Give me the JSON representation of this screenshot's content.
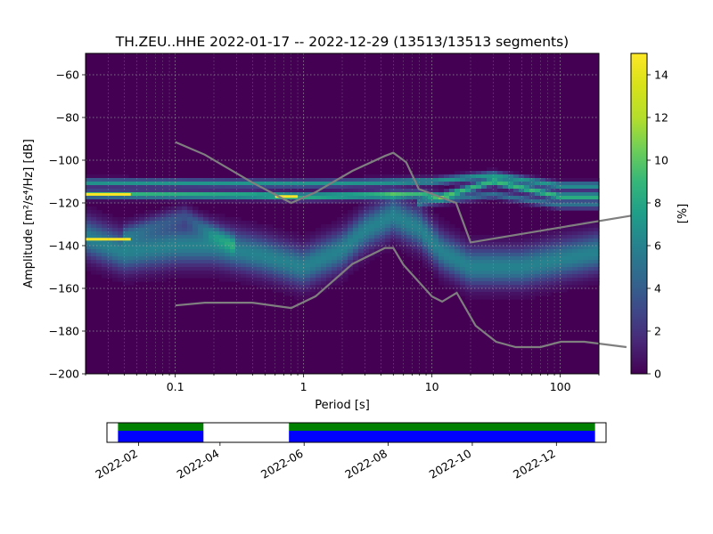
{
  "chart_data": {
    "type": "heatmap",
    "title": "TH.ZEU..HHE   2022-01-17 -- 2022-12-29  (13513/13513 segments)",
    "xlabel": "Period [s]",
    "ylabel": "Amplitude [m²/s⁴/Hz] [dB]",
    "xscale": "log",
    "xlim": [
      0.02,
      200
    ],
    "ylim": [
      -200,
      -50
    ],
    "grid": true,
    "x_ticks": [
      {
        "value": 0.1,
        "label": "0.1"
      },
      {
        "value": 1,
        "label": "1"
      },
      {
        "value": 10,
        "label": "10"
      },
      {
        "value": 100,
        "label": "100"
      }
    ],
    "y_ticks": [
      {
        "value": -60,
        "label": "−60"
      },
      {
        "value": -80,
        "label": "−80"
      },
      {
        "value": -100,
        "label": "−100"
      },
      {
        "value": -120,
        "label": "−120"
      },
      {
        "value": -140,
        "label": "−140"
      },
      {
        "value": -160,
        "label": "−160"
      },
      {
        "value": -180,
        "label": "−180"
      },
      {
        "value": -200,
        "label": "−200"
      }
    ],
    "colorbar": {
      "label": "[%]",
      "range": [
        0,
        15
      ],
      "colormap": "viridis",
      "ticks": [
        {
          "value": 0,
          "label": "0"
        },
        {
          "value": 2,
          "label": "2"
        },
        {
          "value": 4,
          "label": "4"
        },
        {
          "value": 6,
          "label": "6"
        },
        {
          "value": 8,
          "label": "8"
        },
        {
          "value": 10,
          "label": "10"
        },
        {
          "value": 12,
          "label": "12"
        },
        {
          "value": 14,
          "label": "14"
        }
      ]
    },
    "psd_bands": [
      {
        "name": "primary",
        "points": [
          [
            0.02,
            -136
          ],
          [
            0.04,
            -143
          ],
          [
            0.1,
            -140
          ],
          [
            0.2,
            -140
          ],
          [
            0.5,
            -145
          ],
          [
            1,
            -150
          ],
          [
            2,
            -142
          ],
          [
            3,
            -133
          ],
          [
            5,
            -126
          ],
          [
            8,
            -132
          ],
          [
            12,
            -143
          ],
          [
            20,
            -150
          ],
          [
            50,
            -150
          ],
          [
            200,
            -143
          ]
        ],
        "spread": 6,
        "peak": 6
      },
      {
        "name": "upper-spur",
        "points": [
          [
            0.04,
            -135
          ],
          [
            0.07,
            -130
          ],
          [
            0.12,
            -126
          ],
          [
            0.2,
            -134
          ],
          [
            0.3,
            -140
          ]
        ],
        "spread": 3,
        "peak": 3
      },
      {
        "name": "tonal-110",
        "points": [
          [
            0.02,
            -110.5
          ],
          [
            1,
            -111
          ],
          [
            4,
            -110.5
          ],
          [
            8,
            -110
          ],
          [
            10,
            -110
          ],
          [
            30,
            -107
          ],
          [
            100,
            -112
          ],
          [
            200,
            -112
          ]
        ],
        "spread": 1.2,
        "peak": 7
      },
      {
        "name": "tonal-116",
        "points": [
          [
            0.02,
            -116
          ],
          [
            0.4,
            -116.5
          ],
          [
            1,
            -117
          ],
          [
            8,
            -116
          ],
          [
            12,
            -117
          ],
          [
            30,
            -110
          ],
          [
            100,
            -117
          ],
          [
            200,
            -117
          ]
        ],
        "spread": 1.2,
        "peak": 9
      },
      {
        "name": "tonal-120",
        "points": [
          [
            8,
            -120
          ],
          [
            30,
            -116
          ],
          [
            100,
            -121
          ],
          [
            200,
            -121
          ]
        ],
        "spread": 1.2,
        "peak": 5
      }
    ],
    "hot_segments": [
      {
        "x": [
          0.02,
          0.045
        ],
        "y": -137,
        "color": "#fde725"
      },
      {
        "x": [
          0.02,
          0.045
        ],
        "y": -116,
        "color": "#fde725"
      },
      {
        "x": [
          0.6,
          0.9
        ],
        "y": -117,
        "color": "#fde725"
      }
    ],
    "noise_models": [
      {
        "name": "upper",
        "points": [
          [
            0.1,
            -91.5
          ],
          [
            0.17,
            -97.4
          ],
          [
            0.4,
            -110.5
          ],
          [
            0.8,
            -120
          ],
          [
            1.24,
            -115
          ],
          [
            2.4,
            -105
          ],
          [
            4.3,
            -98
          ],
          [
            5,
            -96.5
          ],
          [
            6.3,
            -101
          ],
          [
            7.9,
            -113.5
          ],
          [
            15.4,
            -120
          ],
          [
            20,
            -138.5
          ],
          [
            354.8,
            -126
          ]
        ]
      },
      {
        "name": "lower",
        "points": [
          [
            0.1,
            -168
          ],
          [
            0.17,
            -166.7
          ],
          [
            0.4,
            -166.7
          ],
          [
            0.8,
            -169.2
          ],
          [
            1.24,
            -163.7
          ],
          [
            2.4,
            -148.6
          ],
          [
            4.3,
            -141.1
          ],
          [
            5,
            -141.1
          ],
          [
            6,
            -149
          ],
          [
            10,
            -163.8
          ],
          [
            12,
            -166.2
          ],
          [
            15.6,
            -162.1
          ],
          [
            21.9,
            -177.5
          ],
          [
            31.6,
            -185
          ],
          [
            45,
            -187.5
          ],
          [
            70,
            -187.5
          ],
          [
            101,
            -185
          ],
          [
            154,
            -185
          ],
          [
            328,
            -187.5
          ]
        ]
      }
    ]
  },
  "data_coverage": {
    "tick_labels": [
      "2022-02",
      "2022-04",
      "2022-06",
      "2022-08",
      "2022-10",
      "2022-12"
    ],
    "tick_dates": [
      "2022-02-01",
      "2022-04-01",
      "2022-06-01",
      "2022-08-01",
      "2022-10-01",
      "2022-12-01"
    ],
    "range": [
      "2022-01-09",
      "2023-01-06"
    ],
    "segments": [
      {
        "start": "2022-01-17",
        "end": "2022-03-20"
      },
      {
        "start": "2022-05-21",
        "end": "2022-12-29"
      }
    ],
    "colors": {
      "top": "#008000",
      "bottom": "#0000ff"
    }
  }
}
